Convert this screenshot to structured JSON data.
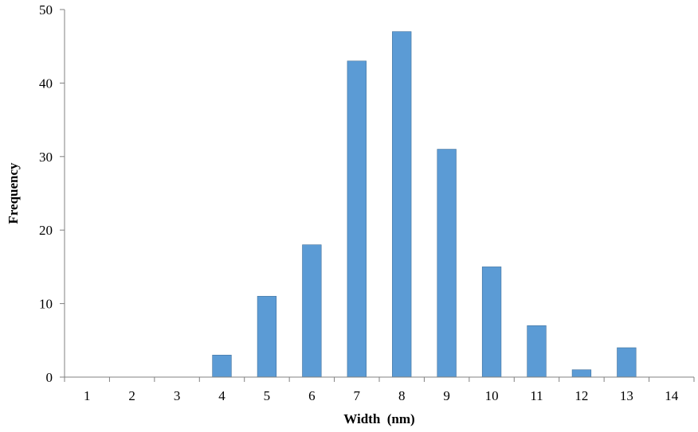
{
  "chart_data": {
    "type": "bar",
    "categories": [
      "1",
      "2",
      "3",
      "4",
      "5",
      "6",
      "7",
      "8",
      "9",
      "10",
      "11",
      "12",
      "13",
      "14"
    ],
    "values": [
      0,
      0,
      0,
      3,
      11,
      18,
      43,
      47,
      31,
      15,
      7,
      1,
      4,
      0
    ],
    "title": "",
    "xlabel": "Width  (nm)",
    "ylabel": "Frequency",
    "ylim": [
      0,
      50
    ],
    "yticks": [
      0,
      10,
      20,
      30,
      40,
      50
    ],
    "grid": false,
    "legend": "none",
    "bar_color": "#5b9bd5",
    "bar_edge_color": "#41719c"
  }
}
